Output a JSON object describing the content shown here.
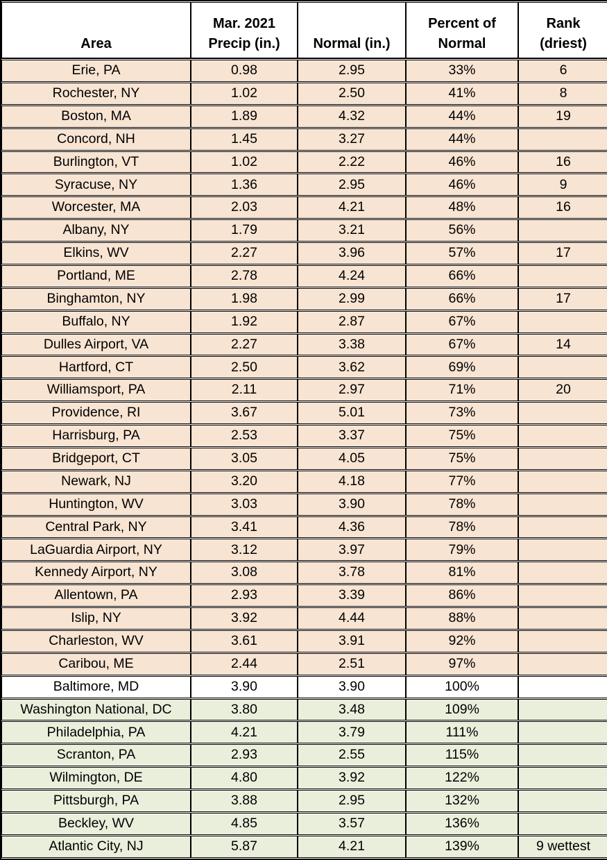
{
  "colors": {
    "below_normal_bg": "#f8e4d2",
    "normal_bg": "#ffffff",
    "above_normal_bg": "#eaefdc",
    "border": "#000000",
    "text": "#000000",
    "header_bg": "#ffffff"
  },
  "chart_data": {
    "type": "table",
    "columns": [
      "Area",
      "Mar. 2021 Precip (in.)",
      "Normal (in.)",
      "Percent of Normal",
      "Rank (driest)"
    ],
    "header_display": [
      "Area",
      "Mar. 2021\nPrecip (in.)",
      "Normal (in.)",
      "Percent of\nNormal",
      "Rank\n(driest)"
    ],
    "rows": [
      {
        "area": "Erie, PA",
        "precip": "0.98",
        "normal": "2.95",
        "percent": "33%",
        "rank": "6",
        "status": "below"
      },
      {
        "area": "Rochester, NY",
        "precip": "1.02",
        "normal": "2.50",
        "percent": "41%",
        "rank": "8",
        "status": "below"
      },
      {
        "area": "Boston, MA",
        "precip": "1.89",
        "normal": "4.32",
        "percent": "44%",
        "rank": "19",
        "status": "below"
      },
      {
        "area": "Concord, NH",
        "precip": "1.45",
        "normal": "3.27",
        "percent": "44%",
        "rank": "",
        "status": "below"
      },
      {
        "area": "Burlington, VT",
        "precip": "1.02",
        "normal": "2.22",
        "percent": "46%",
        "rank": "16",
        "status": "below"
      },
      {
        "area": "Syracuse, NY",
        "precip": "1.36",
        "normal": "2.95",
        "percent": "46%",
        "rank": "9",
        "status": "below"
      },
      {
        "area": "Worcester, MA",
        "precip": "2.03",
        "normal": "4.21",
        "percent": "48%",
        "rank": "16",
        "status": "below"
      },
      {
        "area": "Albany, NY",
        "precip": "1.79",
        "normal": "3.21",
        "percent": "56%",
        "rank": "",
        "status": "below"
      },
      {
        "area": "Elkins, WV",
        "precip": "2.27",
        "normal": "3.96",
        "percent": "57%",
        "rank": "17",
        "status": "below"
      },
      {
        "area": "Portland, ME",
        "precip": "2.78",
        "normal": "4.24",
        "percent": "66%",
        "rank": "",
        "status": "below"
      },
      {
        "area": "Binghamton, NY",
        "precip": "1.98",
        "normal": "2.99",
        "percent": "66%",
        "rank": "17",
        "status": "below"
      },
      {
        "area": "Buffalo, NY",
        "precip": "1.92",
        "normal": "2.87",
        "percent": "67%",
        "rank": "",
        "status": "below"
      },
      {
        "area": "Dulles Airport, VA",
        "precip": "2.27",
        "normal": "3.38",
        "percent": "67%",
        "rank": "14",
        "status": "below"
      },
      {
        "area": "Hartford, CT",
        "precip": "2.50",
        "normal": "3.62",
        "percent": "69%",
        "rank": "",
        "status": "below"
      },
      {
        "area": "Williamsport, PA",
        "precip": "2.11",
        "normal": "2.97",
        "percent": "71%",
        "rank": "20",
        "status": "below"
      },
      {
        "area": "Providence, RI",
        "precip": "3.67",
        "normal": "5.01",
        "percent": "73%",
        "rank": "",
        "status": "below"
      },
      {
        "area": "Harrisburg, PA",
        "precip": "2.53",
        "normal": "3.37",
        "percent": "75%",
        "rank": "",
        "status": "below"
      },
      {
        "area": "Bridgeport, CT",
        "precip": "3.05",
        "normal": "4.05",
        "percent": "75%",
        "rank": "",
        "status": "below"
      },
      {
        "area": "Newark, NJ",
        "precip": "3.20",
        "normal": "4.18",
        "percent": "77%",
        "rank": "",
        "status": "below"
      },
      {
        "area": "Huntington, WV",
        "precip": "3.03",
        "normal": "3.90",
        "percent": "78%",
        "rank": "",
        "status": "below"
      },
      {
        "area": "Central Park, NY",
        "precip": "3.41",
        "normal": "4.36",
        "percent": "78%",
        "rank": "",
        "status": "below"
      },
      {
        "area": "LaGuardia Airport, NY",
        "precip": "3.12",
        "normal": "3.97",
        "percent": "79%",
        "rank": "",
        "status": "below"
      },
      {
        "area": "Kennedy Airport, NY",
        "precip": "3.08",
        "normal": "3.78",
        "percent": "81%",
        "rank": "",
        "status": "below"
      },
      {
        "area": "Allentown, PA",
        "precip": "2.93",
        "normal": "3.39",
        "percent": "86%",
        "rank": "",
        "status": "below"
      },
      {
        "area": "Islip, NY",
        "precip": "3.92",
        "normal": "4.44",
        "percent": "88%",
        "rank": "",
        "status": "below"
      },
      {
        "area": "Charleston, WV",
        "precip": "3.61",
        "normal": "3.91",
        "percent": "92%",
        "rank": "",
        "status": "below"
      },
      {
        "area": "Caribou, ME",
        "precip": "2.44",
        "normal": "2.51",
        "percent": "97%",
        "rank": "",
        "status": "below"
      },
      {
        "area": "Baltimore, MD",
        "precip": "3.90",
        "normal": "3.90",
        "percent": "100%",
        "rank": "",
        "status": "normal"
      },
      {
        "area": "Washington National, DC",
        "precip": "3.80",
        "normal": "3.48",
        "percent": "109%",
        "rank": "",
        "status": "above"
      },
      {
        "area": "Philadelphia, PA",
        "precip": "4.21",
        "normal": "3.79",
        "percent": "111%",
        "rank": "",
        "status": "above"
      },
      {
        "area": "Scranton, PA",
        "precip": "2.93",
        "normal": "2.55",
        "percent": "115%",
        "rank": "",
        "status": "above"
      },
      {
        "area": "Wilmington, DE",
        "precip": "4.80",
        "normal": "3.92",
        "percent": "122%",
        "rank": "",
        "status": "above"
      },
      {
        "area": "Pittsburgh, PA",
        "precip": "3.88",
        "normal": "2.95",
        "percent": "132%",
        "rank": "",
        "status": "above"
      },
      {
        "area": "Beckley, WV",
        "precip": "4.85",
        "normal": "3.57",
        "percent": "136%",
        "rank": "",
        "status": "above"
      },
      {
        "area": "Atlantic City, NJ",
        "precip": "5.87",
        "normal": "4.21",
        "percent": "139%",
        "rank": "9 wettest",
        "status": "above"
      }
    ]
  }
}
